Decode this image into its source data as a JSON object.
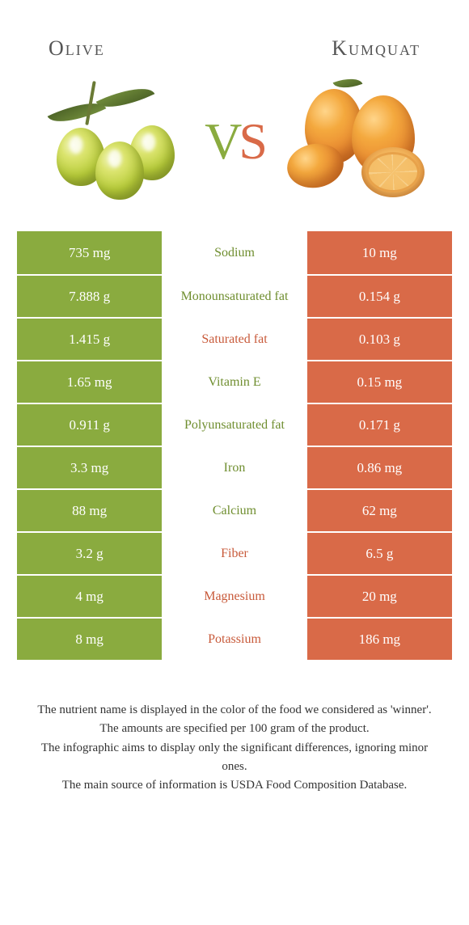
{
  "colors": {
    "olive": "#8aab3f",
    "kumquat": "#d96a48",
    "olive_text": "#6f8e2f",
    "kumquat_text": "#c85a3a",
    "background": "#ffffff"
  },
  "header": {
    "left_title": "Olive",
    "right_title": "Kumquat",
    "vs_v": "V",
    "vs_s": "S"
  },
  "rows": [
    {
      "left": "735 mg",
      "label": "Sodium",
      "right": "10 mg",
      "winner": "olive"
    },
    {
      "left": "7.888 g",
      "label": "Monounsaturated fat",
      "right": "0.154 g",
      "winner": "olive"
    },
    {
      "left": "1.415 g",
      "label": "Saturated fat",
      "right": "0.103 g",
      "winner": "kumquat"
    },
    {
      "left": "1.65 mg",
      "label": "Vitamin E",
      "right": "0.15 mg",
      "winner": "olive"
    },
    {
      "left": "0.911 g",
      "label": "Polyunsaturated fat",
      "right": "0.171 g",
      "winner": "olive"
    },
    {
      "left": "3.3 mg",
      "label": "Iron",
      "right": "0.86 mg",
      "winner": "olive"
    },
    {
      "left": "88 mg",
      "label": "Calcium",
      "right": "62 mg",
      "winner": "olive"
    },
    {
      "left": "3.2 g",
      "label": "Fiber",
      "right": "6.5 g",
      "winner": "kumquat"
    },
    {
      "left": "4 mg",
      "label": "Magnesium",
      "right": "20 mg",
      "winner": "kumquat"
    },
    {
      "left": "8 mg",
      "label": "Potassium",
      "right": "186 mg",
      "winner": "kumquat"
    }
  ],
  "footer": {
    "line1": "The nutrient name is displayed in the color of the food we considered as 'winner'.",
    "line2": "The amounts are specified per 100 gram of the product.",
    "line3": "The infographic aims to display only the significant differences, ignoring minor ones.",
    "line4": "The main source of information is USDA Food Composition Database."
  }
}
